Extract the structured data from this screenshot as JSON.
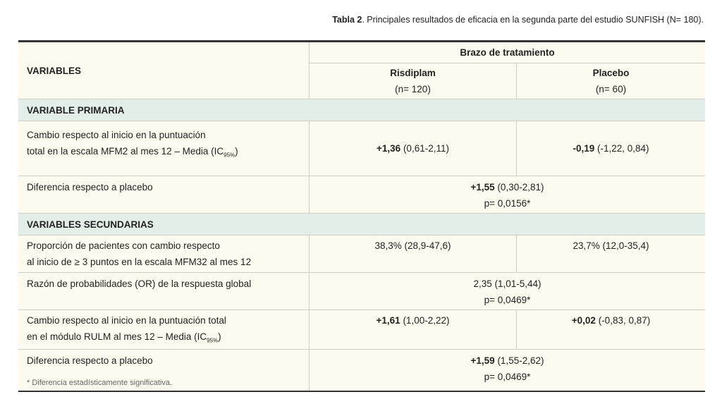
{
  "caption": {
    "label": "Tabla 2",
    "text": ". Principales resultados de eficacia en la segunda parte del estudio SUNFISH (N= 180)."
  },
  "header": {
    "variables": "VARIABLES",
    "group": "Brazo de tratamiento",
    "col2": "Risdiplam",
    "col2_n": "(n= 120)",
    "col3": "Placebo",
    "col3_n": "(n= 60)"
  },
  "sections": {
    "primary": "VARIABLE PRIMARIA",
    "secondary": "VARIABLES SECUNDARIAS"
  },
  "rows": [
    {
      "label1": "Cambio respecto al inicio en la puntuación",
      "label2": "total en la escala MFM2 al mes 12 – Media (IC",
      "sub": "95%",
      "close": ")",
      "v2b": "+1,36",
      "v2": " (0,61-2,11)",
      "v3b": "-0,19",
      "v3": " (-1,22, 0,84)"
    },
    {
      "label1": "Diferencia respecto a placebo",
      "vb": "+1,55",
      "v": " (0,30-2,81)",
      "p": "p= 0,0156*"
    },
    {
      "label1": "Proporción de pacientes con cambio respecto",
      "label2": "al inicio de ≥ 3 puntos en la escala MFM32 al mes 12",
      "v2": "38,3% (28,9-47,6)",
      "v3": "23,7% (12,0-35,4)"
    },
    {
      "label1": "Razón de probabilidades (OR) de la respuesta global",
      "v": "2,35 (1,01-5,44)",
      "p": "p= 0,0469*"
    },
    {
      "label1": "Cambio respecto al inicio en la puntuación total",
      "label2": "en el módulo RULM al mes 12 – Media (IC",
      "sub": "95%",
      "close": ")",
      "v2b": "+1,61",
      "v2": " (1,00-2,22)",
      "v3b": "+0,02",
      "v3": " (-0,83, 0,87)"
    },
    {
      "label1": "Diferencia respecto a placebo",
      "vb": "+1,59",
      "v": " (1,55-2,62)",
      "p": "p= 0,0469*"
    }
  ],
  "footnote": "* Diferencia estadísticamente significativa."
}
